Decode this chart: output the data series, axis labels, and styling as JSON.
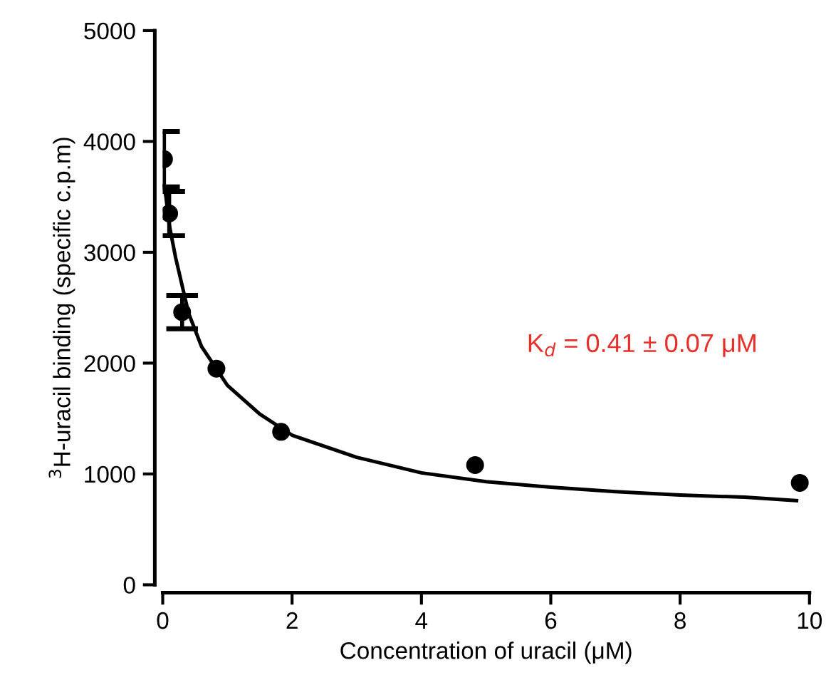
{
  "chart_data": {
    "type": "scatter",
    "xlabel": "Concentration of uracil (μM)",
    "ylabel": "$^{3}$H-uracil binding (specific c.p.m)",
    "annotations": [
      "K$_{d}$ = 0.41 ± 0.07 μM"
    ],
    "xlim": [
      0,
      10
    ],
    "xticks": [
      0,
      2,
      4,
      6,
      8,
      10
    ],
    "ylim": [
      0,
      5000
    ],
    "yticks": [
      0,
      1000,
      2000,
      3000,
      4000,
      5000
    ],
    "grid": false,
    "legend": false,
    "series": [
      {
        "color": "#000000",
        "marker": "circle",
        "x": [
          0.02,
          0.1,
          0.3,
          0.83,
          1.83,
          4.83,
          9.85
        ],
        "values": [
          3840,
          3350,
          2460,
          1950,
          1380,
          1080,
          920
        ],
        "errors": [
          250,
          200,
          150,
          null,
          null,
          null,
          null
        ]
      },
      {
        "type": "line",
        "color": "#000000",
        "marker": "none",
        "line_style": "solid",
        "x": [
          0.02,
          0.05,
          0.1,
          0.2,
          0.4,
          0.6,
          1,
          1.5,
          2,
          3,
          4,
          5,
          6,
          7,
          8,
          9,
          9.8
        ],
        "values": [
          3600,
          3500,
          3250,
          2950,
          2450,
          2150,
          1800,
          1540,
          1350,
          1150,
          1010,
          930,
          880,
          840,
          810,
          790,
          760
        ]
      }
    ]
  }
}
